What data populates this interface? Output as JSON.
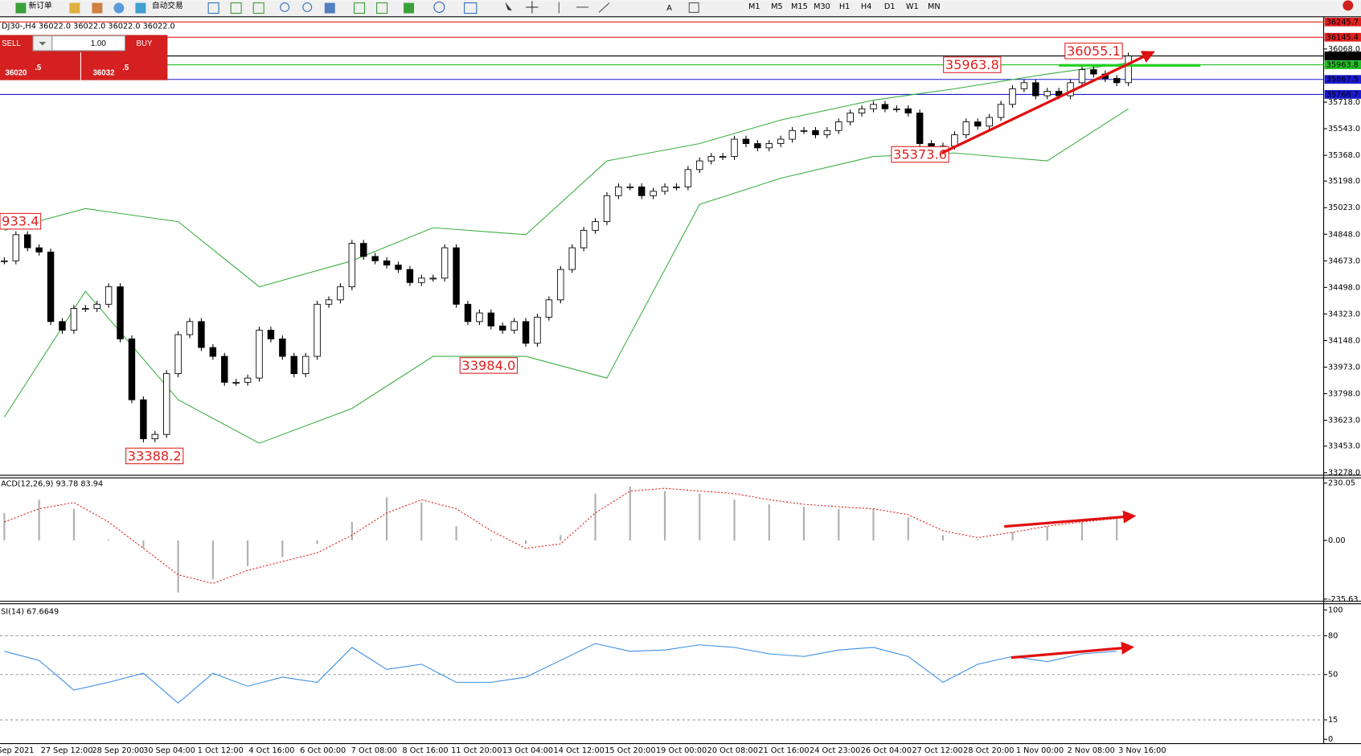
{
  "toolbar": {
    "new_order": "新订单",
    "auto_trading": "自动交易",
    "timeframes": [
      "M1",
      "M5",
      "M15",
      "M30",
      "H1",
      "H4",
      "D1",
      "W1",
      "MN"
    ]
  },
  "trade_panel": {
    "sell": "SELL",
    "lot": "1.00",
    "buy": "BUY",
    "bid_main": "36020",
    "bid_frac": ".5",
    "ask_main": "36032",
    "ask_frac": ".5"
  },
  "chart_data": [
    {
      "type": "candlestick",
      "title": "DJ30-,H4  36022.0 36022.0 36022.0 36022.0",
      "closes": [
        34673,
        34845,
        34759,
        34731,
        34273,
        34216,
        34359,
        34359,
        34387,
        34502,
        34159,
        33758,
        33501,
        33530,
        33930,
        34187,
        34273,
        34102,
        34044,
        33873,
        33873,
        33901,
        34216,
        34159,
        34044,
        33930,
        34044,
        34387,
        34416,
        34502,
        34788,
        34702,
        34673,
        34645,
        34616,
        34530,
        34559,
        34559,
        34759,
        34387,
        34273,
        34330,
        34244,
        34216,
        34273,
        34130,
        34302,
        34416,
        34616,
        34759,
        34874,
        34931,
        35102,
        35160,
        35160,
        35102,
        35131,
        35160,
        35160,
        35274,
        35331,
        35360,
        35360,
        35474,
        35445,
        35417,
        35445,
        35474,
        35531,
        35531,
        35503,
        35531,
        35588,
        35646,
        35674,
        35703,
        35674,
        35674,
        35646,
        35445,
        35417,
        35428,
        35503,
        35588,
        35560,
        35617,
        35703,
        35806,
        35846,
        35760,
        35789,
        35760,
        35846,
        35932,
        35903,
        35874,
        35846,
        36022
      ],
      "bands": {
        "color": "#3cb043",
        "x": [
          0,
          7,
          15,
          22,
          30,
          37,
          45,
          52,
          60,
          67,
          75,
          82,
          90,
          97
        ],
        "upper": [
          34874,
          35017,
          34931,
          34502,
          34673,
          34891,
          34845,
          35331,
          35445,
          35600,
          35731,
          35806,
          35903,
          35977
        ],
        "lower": [
          33644,
          34473,
          33758,
          33472,
          33701,
          34044,
          34044,
          33901,
          35045,
          35217,
          35360,
          35383,
          35331,
          35674
        ]
      },
      "ylim": [
        33261,
        36263
      ],
      "yticks": [
        {
          "value": 36068,
          "label": "36068.0"
        },
        {
          "value": 35718,
          "label": "35718.0"
        },
        {
          "value": 35543,
          "label": "35543.0"
        },
        {
          "value": 35368,
          "label": "35368.0"
        },
        {
          "value": 35198,
          "label": "35198.0"
        },
        {
          "value": 35023,
          "label": "35023.0"
        },
        {
          "value": 34848,
          "label": "34848.0"
        },
        {
          "value": 34673,
          "label": "34673.0"
        },
        {
          "value": 34498,
          "label": "34498.0"
        },
        {
          "value": 34323,
          "label": "34323.0"
        },
        {
          "value": 34148,
          "label": "34148.0"
        },
        {
          "value": 33973,
          "label": "33973.0"
        },
        {
          "value": 33798,
          "label": "33798.0"
        },
        {
          "value": 33623,
          "label": "33623.0"
        },
        {
          "value": 33453,
          "label": "33453.0"
        },
        {
          "value": 33278,
          "label": "33278.0"
        }
      ],
      "levels": [
        {
          "value": 36245.7,
          "label": "36245.7",
          "color": "#e02020"
        },
        {
          "value": 36145.4,
          "label": "36145.4",
          "color": "#e02020"
        },
        {
          "value": 36022,
          "label": "36022.0",
          "color": "#000000"
        },
        {
          "value": 35963.8,
          "label": "35963.8",
          "color": "#22c022"
        },
        {
          "value": 35867.5,
          "label": "35867.5",
          "color": "#1a1ad0"
        },
        {
          "value": 35768.7,
          "label": "35768.7",
          "color": "#1a1ad0"
        }
      ],
      "annotations": [
        {
          "value": 34933.4,
          "label": "933.4"
        },
        {
          "value": 33388.2,
          "label": "33388.2"
        },
        {
          "value": 33984,
          "label": "33984.0"
        },
        {
          "value": 35373.6,
          "label": "35373.6"
        },
        {
          "value": 35963.8,
          "label": "35963.8"
        },
        {
          "value": 36055.1,
          "label": "36055.1"
        }
      ],
      "x_labels": [
        "Sep 2021",
        "27 Sep 12:00",
        "28 Sep 20:00",
        "30 Sep 04:00",
        "1 Oct 12:00",
        "4 Oct 16:00",
        "6 Oct 00:00",
        "7 Oct 08:00",
        "8 Oct 16:00",
        "11 Oct 20:00",
        "13 Oct 04:00",
        "14 Oct 12:00",
        "15 Oct 20:00",
        "19 Oct 00:00",
        "20 Oct 08:00",
        "21 Oct 16:00",
        "24 Oct 23:00",
        "26 Oct 04:00",
        "27 Oct 12:00",
        "28 Oct 20:00",
        "1 Nov 00:00",
        "2 Nov 08:00",
        "3 Nov 16:00"
      ]
    },
    {
      "type": "macd",
      "title": "ACD(12,26,9) 93.78 83.94",
      "x": [
        0,
        3,
        6,
        9,
        12,
        15,
        18,
        21,
        24,
        27,
        30,
        33,
        36,
        39,
        42,
        45,
        48,
        51,
        54,
        57,
        60,
        63,
        66,
        69,
        72,
        75,
        78,
        81,
        84,
        87,
        90,
        93,
        96
      ],
      "series": [
        {
          "name": "histogram",
          "color": "#b0b0b0",
          "values": [
            110,
            163,
            127,
            4,
            -32,
            -209,
            -156,
            -103,
            -67,
            -14,
            74,
            173,
            152,
            57,
            4,
            -14,
            21,
            188,
            216,
            198,
            188,
            163,
            145,
            135,
            127,
            127,
            92,
            21,
            4,
            32,
            57,
            74,
            92
          ]
        },
        {
          "name": "signal",
          "color": "#e02020",
          "values": [
            74,
            127,
            152,
            74,
            -32,
            -138,
            -173,
            -120,
            -85,
            -50,
            21,
            110,
            163,
            127,
            39,
            -32,
            -14,
            110,
            198,
            209,
            198,
            188,
            163,
            145,
            135,
            127,
            103,
            39,
            11,
            32,
            57,
            74,
            88
          ]
        }
      ],
      "ylim": [
        -244,
        251
      ],
      "yticks": [
        {
          "value": 230.05,
          "label": "230.05"
        },
        {
          "value": 0,
          "label": "0.00"
        },
        {
          "value": -235.63,
          "label": "-235.63"
        }
      ]
    },
    {
      "type": "line",
      "title": "SI(14) 67.6649",
      "color": "#3a8ee6",
      "x": [
        0,
        3,
        6,
        9,
        12,
        15,
        18,
        21,
        24,
        27,
        30,
        33,
        36,
        39,
        42,
        45,
        48,
        51,
        54,
        57,
        60,
        63,
        66,
        69,
        72,
        75,
        78,
        81,
        84,
        87,
        90,
        93,
        96
      ],
      "values": [
        68,
        61,
        38,
        44,
        51,
        28,
        51,
        41,
        48,
        44,
        71,
        54,
        58,
        44,
        44,
        48,
        61,
        74,
        68,
        69,
        73,
        71,
        66,
        64,
        69,
        71,
        64,
        44,
        58,
        64,
        60,
        66,
        68
      ],
      "ylim": [
        -2.7,
        103.4
      ],
      "yticks": [
        100,
        80,
        50,
        15,
        0
      ],
      "levels": [
        80,
        50,
        15
      ]
    }
  ]
}
